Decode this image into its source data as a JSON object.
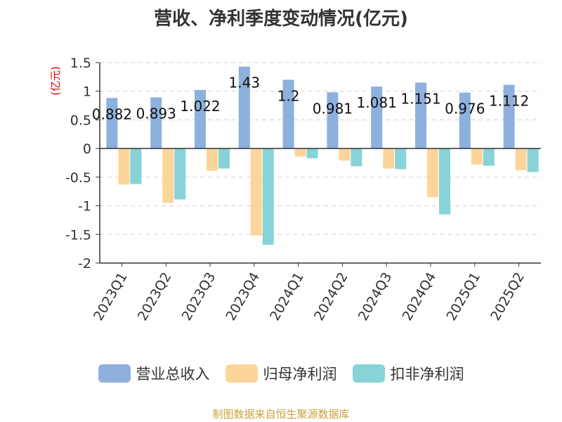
{
  "title": "营收、净利季度变动情况(亿元)",
  "footer": "制图数据来自恒生聚源数据库",
  "chart_data": {
    "type": "bar",
    "unit_label": "(亿元)",
    "categories": [
      "2023Q1",
      "2023Q2",
      "2023Q3",
      "2023Q4",
      "2024Q1",
      "2024Q2",
      "2024Q3",
      "2024Q4",
      "2025Q1",
      "2025Q2"
    ],
    "series": [
      {
        "name": "营业总收入",
        "color": "#8eb0dc",
        "values": [
          0.882,
          0.893,
          1.022,
          1.43,
          1.2,
          0.981,
          1.081,
          1.151,
          0.976,
          1.112
        ],
        "value_labels": [
          "0.882",
          "0.893",
          "1.022",
          "1.43",
          "1.2",
          "0.981",
          "1.081",
          "1.151",
          "0.976",
          "1.112"
        ]
      },
      {
        "name": "归母净利润",
        "color": "#fdd59a",
        "values": [
          -0.63,
          -0.95,
          -0.39,
          -1.52,
          -0.14,
          -0.21,
          -0.35,
          -0.85,
          -0.28,
          -0.38
        ]
      },
      {
        "name": "扣非净利润",
        "color": "#87d3d7",
        "values": [
          -0.62,
          -0.89,
          -0.35,
          -1.68,
          -0.17,
          -0.31,
          -0.36,
          -1.15,
          -0.3,
          -0.41
        ]
      }
    ],
    "ylim": [
      -2,
      1.5
    ],
    "yticks": [
      1.5,
      1,
      0.5,
      0,
      -0.5,
      -1,
      -1.5,
      -2
    ],
    "ytick_labels": [
      "1.5",
      "1",
      "0.5",
      "0",
      "-0.5",
      "-1",
      "-1.5",
      "-2"
    ],
    "grid": true,
    "legend_position": "bottom"
  }
}
